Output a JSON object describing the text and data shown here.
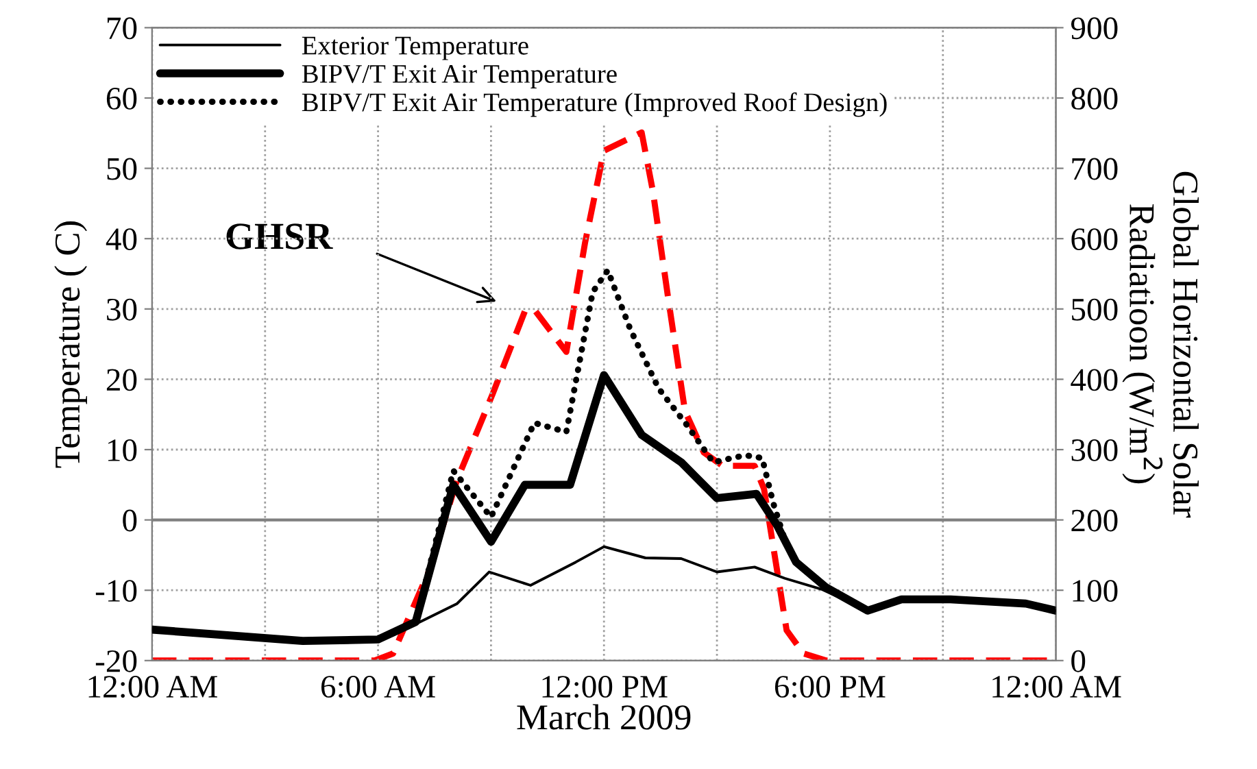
{
  "chart_data": {
    "type": "line",
    "xlabel": "March 2009",
    "ylabel": "Temperature ( C)",
    "y2label": "Global Horizontal Solar\nRadiatioon (W/m$^{2}$)",
    "xlim": [
      0,
      24
    ],
    "xticks": [
      {
        "value": 0,
        "label": "12:00 AM"
      },
      {
        "value": 3,
        "label": null
      },
      {
        "value": 6,
        "label": "6:00 AM"
      },
      {
        "value": 9,
        "label": null
      },
      {
        "value": 12,
        "label": "12:00 PM"
      },
      {
        "value": 15,
        "label": null
      },
      {
        "value": 18,
        "label": "6:00 PM"
      },
      {
        "value": 21,
        "label": null
      },
      {
        "value": 24,
        "label": "12:00 AM"
      }
    ],
    "ylim": [
      -20,
      70
    ],
    "yticks": [
      -20,
      -10,
      0,
      10,
      20,
      30,
      40,
      50,
      60,
      70
    ],
    "y2lim": [
      0,
      900
    ],
    "y2ticks": [
      0,
      100,
      200,
      300,
      400,
      500,
      600,
      700,
      800,
      900
    ],
    "grid": true,
    "legend": "top left",
    "marker": "none",
    "ref_lines": [
      {
        "axis": "y",
        "value": 0,
        "color": "#808080",
        "line_style": "solid"
      }
    ],
    "annotations": [
      "GHSR"
    ],
    "series": [
      {
        "name": "Exterior Temperature",
        "color": "#000000",
        "line_style": "solid",
        "x": [
          0,
          2,
          4,
          6,
          6.4,
          8.1,
          8.95,
          10.05,
          11.25,
          12,
          13.1,
          14.05,
          15,
          16,
          16.8,
          17.8,
          19,
          19.9,
          21.2,
          23.2,
          24
        ],
        "values": [
          -15.6,
          -16.4,
          -17.1,
          -17,
          -16.4,
          -11.9,
          -7.4,
          -9.3,
          -6,
          -3.8,
          -5.4,
          -5.5,
          -7.4,
          -6.7,
          -8.3,
          -9.9,
          -12.9,
          -11.3,
          -11.3,
          -11.9,
          -12.9
        ]
      },
      {
        "name": "BIPV/T Exit Air Temperature",
        "color": "#000000",
        "line_style": "solid",
        "x": [
          0,
          2,
          4,
          6,
          7,
          8,
          9,
          9.9,
          11.1,
          12,
          13,
          14.05,
          15,
          16.05,
          16.6,
          17.1,
          17.9,
          19,
          19.9,
          21.2,
          23.2,
          24
        ],
        "values": [
          -15.6,
          -16.4,
          -17.2,
          -17,
          -14.5,
          5,
          -3.1,
          5,
          5,
          20.6,
          12.1,
          8.2,
          3.1,
          3.7,
          -0.8,
          -6,
          -9.6,
          -12.9,
          -11.3,
          -11.3,
          -11.9,
          -12.9
        ]
      },
      {
        "name": "BIPV/T Exit Air Temperature (Improved Roof Design)",
        "color": "#000000",
        "line_style": "dotted",
        "x": [
          0,
          2,
          4,
          6,
          7,
          8,
          9,
          10.15,
          11,
          11.7,
          12.1,
          12.7,
          13.45,
          14.2,
          14.9,
          15.75,
          16.2,
          16.5,
          16.8,
          17.1,
          17.9,
          19,
          19.9,
          21.2,
          23.2,
          24
        ],
        "values": [
          -15.6,
          -16.4,
          -17.2,
          -17,
          -14.5,
          7,
          0.4,
          13.8,
          12.5,
          32.4,
          35.5,
          27.1,
          18.7,
          13.5,
          8.2,
          9.2,
          8.8,
          2.3,
          -2.8,
          -6,
          -9.6,
          -12.9,
          -11.3,
          -11.3,
          -11.9,
          -12.9
        ]
      },
      {
        "color": "#ff0000",
        "line_style": "dashed",
        "axis": "y2",
        "x": [
          0,
          5.9,
          6.4,
          7.35,
          8.1,
          9.05,
          9.9,
          10.15,
          11,
          11.5,
          12,
          13,
          13.3,
          13.7,
          14.15,
          14.65,
          15.15,
          16,
          16.25,
          16.6,
          16.85,
          17.3,
          17.9,
          24
        ],
        "values": [
          0,
          0,
          10,
          127,
          257,
          380,
          497,
          499,
          439,
          595,
          725,
          751,
          667,
          517,
          355,
          296,
          277,
          277,
          244,
          127,
          43,
          10,
          0,
          0
        ]
      }
    ]
  }
}
